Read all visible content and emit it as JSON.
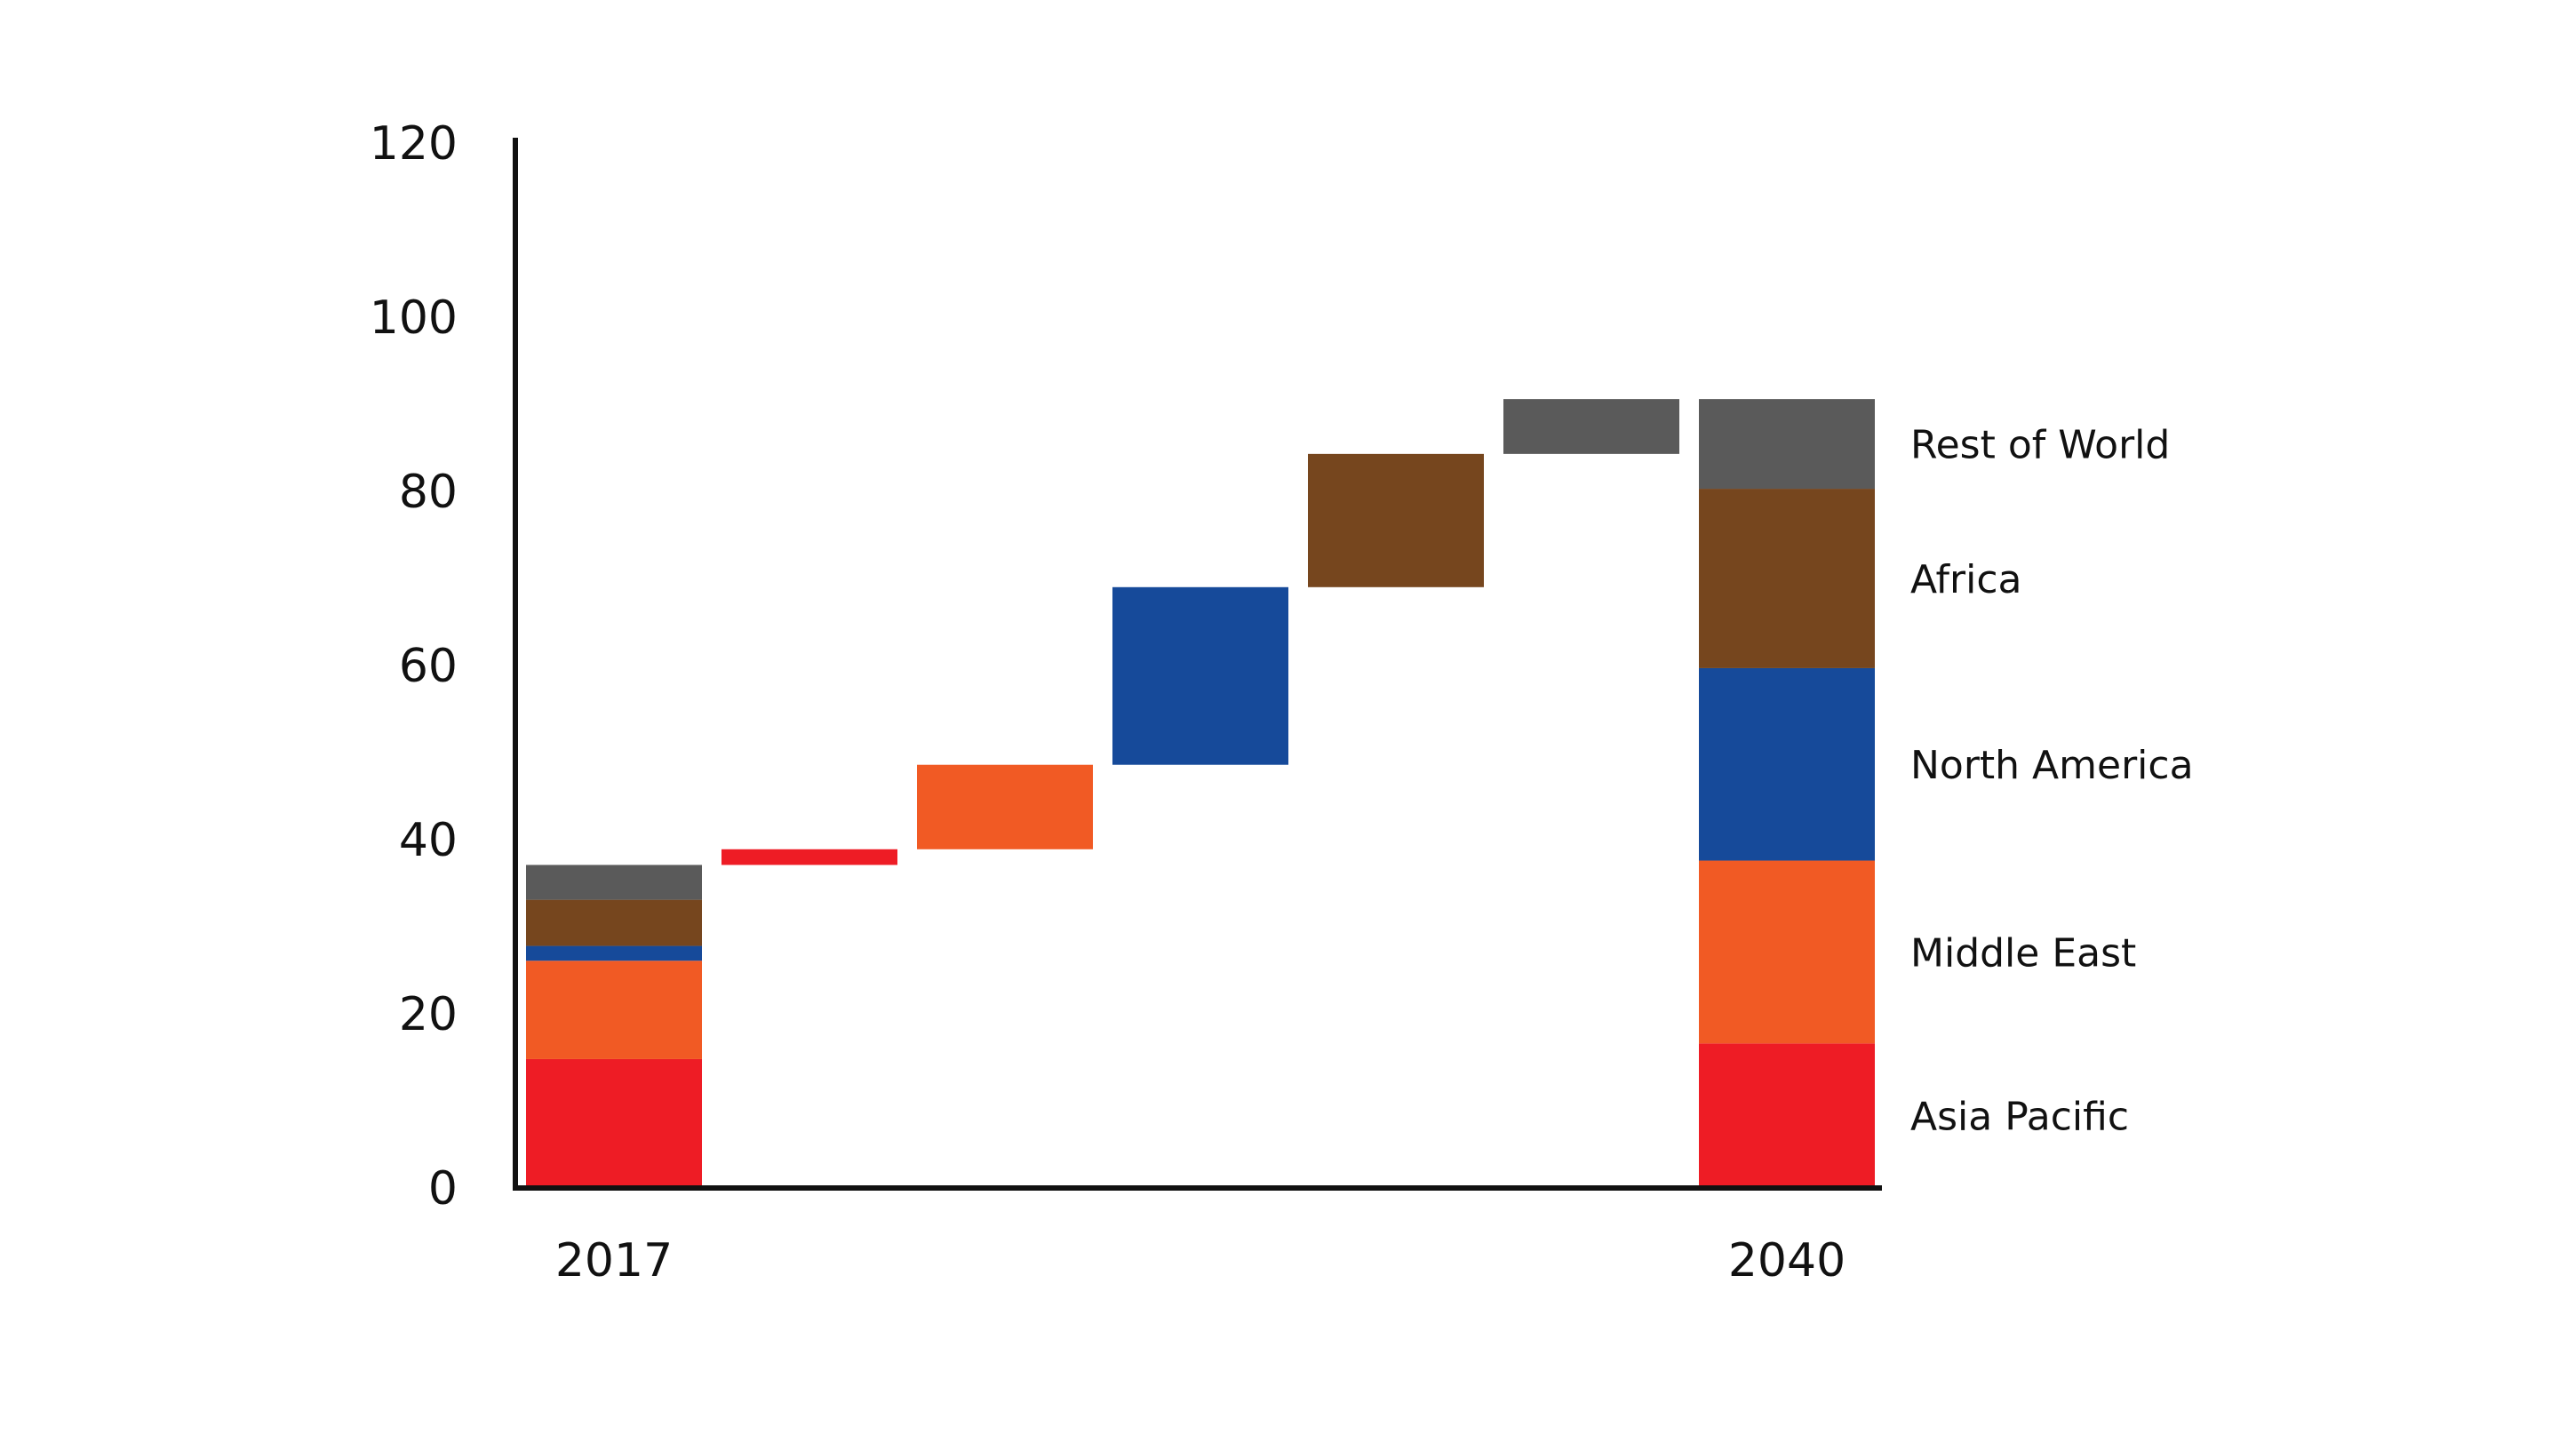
{
  "chart_data": {
    "type": "bar",
    "subtype": "waterfall",
    "title": "",
    "xlabel": "",
    "ylabel": "",
    "ylim": [
      0,
      120
    ],
    "yticks": [
      0,
      20,
      40,
      60,
      80,
      100,
      120
    ],
    "yticks_labels": [
      "0",
      "20",
      "40",
      "60",
      "80",
      "100",
      "120"
    ],
    "grid": false,
    "regions": [
      "Asia Pacific",
      "Middle East",
      "North America",
      "Africa",
      "Rest of World"
    ],
    "colors": {
      "Asia Pacific": "#ee1c25",
      "Middle East": "#f15a24",
      "North America": "#164a9a",
      "Africa": "#76461e",
      "Rest of World": "#5a5a5a"
    },
    "start": {
      "label": "2017",
      "segments": [
        {
          "region": "Asia Pacific",
          "value": 14.8
        },
        {
          "region": "Middle East",
          "value": 11.3
        },
        {
          "region": "North America",
          "value": 1.7
        },
        {
          "region": "Africa",
          "value": 5.3
        },
        {
          "region": "Rest of World",
          "value": 4.0
        }
      ]
    },
    "changes": [
      {
        "region": "Asia Pacific",
        "value": 1.8
      },
      {
        "region": "Middle East",
        "value": 9.7
      },
      {
        "region": "North America",
        "value": 20.4
      },
      {
        "region": "Africa",
        "value": 15.3
      },
      {
        "region": "Rest of World",
        "value": 6.3
      }
    ],
    "end": {
      "label": "2040",
      "segments": [
        {
          "region": "Asia Pacific",
          "value": 16.6
        },
        {
          "region": "Middle East",
          "value": 21.0
        },
        {
          "region": "North America",
          "value": 22.1
        },
        {
          "region": "Africa",
          "value": 20.6
        },
        {
          "region": "Rest of World",
          "value": 10.3
        }
      ]
    },
    "legend": [
      "Rest of World",
      "Africa",
      "North America",
      "Middle East",
      "Asia Pacific"
    ]
  }
}
